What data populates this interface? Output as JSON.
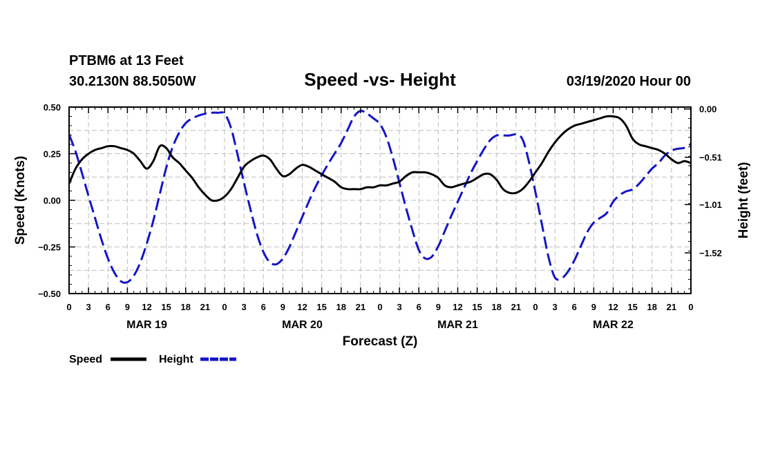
{
  "header": {
    "station": "PTBM6 at 13 Feet",
    "coords": "30.2130N 88.5050W",
    "run": "03/19/2020 Hour 00"
  },
  "legend": {
    "speed_label": "Speed",
    "height_label": "Height"
  },
  "colors": {
    "speed": "#000000",
    "height": "#1414c8",
    "grid": "#bdbdbd"
  },
  "chart_data": {
    "type": "line",
    "title": "Speed -vs- Height",
    "xlabel": "Forecast (Z)",
    "ylabel": "Speed (Knots)",
    "y2label": "Height (feet)",
    "xlim": [
      0,
      96
    ],
    "ylim": [
      -0.5,
      0.5
    ],
    "y2lim": [
      -1.95,
      0.02
    ],
    "x_ticks": [
      0,
      3,
      6,
      9,
      12,
      15,
      18,
      21,
      24,
      27,
      30,
      33,
      36,
      39,
      42,
      45,
      48,
      51,
      54,
      57,
      60,
      63,
      66,
      69,
      72,
      75,
      78,
      81,
      84,
      87,
      90,
      93,
      96
    ],
    "x_tick_labels": [
      "0",
      "3",
      "6",
      "9",
      "12",
      "15",
      "18",
      "21",
      "0",
      "3",
      "6",
      "9",
      "12",
      "15",
      "18",
      "21",
      "0",
      "3",
      "6",
      "9",
      "12",
      "15",
      "18",
      "21",
      "0",
      "3",
      "6",
      "9",
      "12",
      "15",
      "18",
      "21",
      "0"
    ],
    "day_labels": [
      {
        "label": "MAR 19",
        "at": 12
      },
      {
        "label": "MAR 20",
        "at": 36
      },
      {
        "label": "MAR 21",
        "at": 60
      },
      {
        "label": "MAR 22",
        "at": 84
      }
    ],
    "y_ticks": [
      0.5,
      0.25,
      0.0,
      -0.25,
      -0.5
    ],
    "y_tick_labels": [
      "0.50",
      "0.25",
      "0.00",
      "−0.25",
      "−0.50"
    ],
    "y2_ticks": [
      0.0,
      -0.51,
      -1.01,
      -1.52
    ],
    "y2_tick_labels": [
      "0.00",
      "−0.51",
      "−1.01",
      "−1.52"
    ],
    "grid": true,
    "series": [
      {
        "name": "Speed",
        "axis": "left",
        "style": "solid",
        "x": [
          0,
          1,
          2,
          3,
          4,
          5,
          6,
          7,
          8,
          9,
          10,
          11,
          12,
          13,
          14,
          15,
          16,
          17,
          18,
          19,
          20,
          21,
          22,
          23,
          24,
          25,
          26,
          27,
          28,
          29,
          30,
          31,
          32,
          33,
          34,
          35,
          36,
          37,
          38,
          39,
          40,
          41,
          42,
          43,
          44,
          45,
          46,
          47,
          48,
          49,
          50,
          51,
          52,
          53,
          54,
          55,
          56,
          57,
          58,
          59,
          60,
          61,
          62,
          63,
          64,
          65,
          66,
          67,
          68,
          69,
          70,
          71,
          72,
          73,
          74,
          75,
          76,
          77,
          78,
          79,
          80,
          81,
          82,
          83,
          84,
          85,
          86,
          87,
          88,
          89,
          90,
          91,
          92,
          93,
          94,
          95,
          96
        ],
        "values": [
          0.09,
          0.17,
          0.22,
          0.25,
          0.27,
          0.28,
          0.29,
          0.29,
          0.28,
          0.27,
          0.25,
          0.21,
          0.17,
          0.21,
          0.29,
          0.28,
          0.23,
          0.2,
          0.16,
          0.12,
          0.07,
          0.03,
          0.0,
          0.0,
          0.02,
          0.06,
          0.12,
          0.18,
          0.21,
          0.23,
          0.24,
          0.22,
          0.17,
          0.13,
          0.14,
          0.17,
          0.19,
          0.18,
          0.16,
          0.14,
          0.12,
          0.1,
          0.07,
          0.06,
          0.06,
          0.06,
          0.07,
          0.07,
          0.08,
          0.08,
          0.09,
          0.1,
          0.13,
          0.15,
          0.15,
          0.15,
          0.14,
          0.12,
          0.08,
          0.07,
          0.08,
          0.09,
          0.1,
          0.12,
          0.14,
          0.14,
          0.11,
          0.06,
          0.04,
          0.04,
          0.06,
          0.1,
          0.15,
          0.2,
          0.26,
          0.31,
          0.35,
          0.38,
          0.4,
          0.41,
          0.42,
          0.43,
          0.44,
          0.45,
          0.45,
          0.44,
          0.4,
          0.33,
          0.3,
          0.29,
          0.28,
          0.27,
          0.25,
          0.22,
          0.2,
          0.21,
          0.2
        ]
      },
      {
        "name": "Height",
        "axis": "right",
        "style": "dashed",
        "x": [
          0,
          1,
          2,
          3,
          4,
          5,
          6,
          7,
          8,
          9,
          10,
          11,
          12,
          13,
          14,
          15,
          16,
          17,
          18,
          19,
          20,
          21,
          22,
          23,
          24,
          25,
          26,
          27,
          28,
          29,
          30,
          31,
          32,
          33,
          34,
          35,
          36,
          37,
          38,
          39,
          40,
          41,
          42,
          43,
          44,
          45,
          46,
          47,
          48,
          49,
          50,
          51,
          52,
          53,
          54,
          55,
          56,
          57,
          58,
          59,
          60,
          61,
          62,
          63,
          64,
          65,
          66,
          67,
          68,
          69,
          70,
          71,
          72,
          73,
          74,
          75,
          76,
          77,
          78,
          79,
          80,
          81,
          82,
          83,
          84,
          85,
          86,
          87,
          88,
          89,
          90,
          91,
          92,
          93,
          94,
          95,
          96
        ],
        "values": [
          -0.27,
          -0.45,
          -0.68,
          -0.92,
          -1.15,
          -1.38,
          -1.58,
          -1.73,
          -1.82,
          -1.83,
          -1.76,
          -1.62,
          -1.42,
          -1.18,
          -0.9,
          -0.62,
          -0.4,
          -0.25,
          -0.15,
          -0.1,
          -0.07,
          -0.05,
          -0.04,
          -0.04,
          -0.05,
          -0.2,
          -0.48,
          -0.78,
          -1.06,
          -1.32,
          -1.51,
          -1.62,
          -1.64,
          -1.58,
          -1.46,
          -1.3,
          -1.14,
          -0.98,
          -0.83,
          -0.7,
          -0.58,
          -0.47,
          -0.36,
          -0.22,
          -0.08,
          -0.02,
          -0.05,
          -0.1,
          -0.16,
          -0.3,
          -0.52,
          -0.78,
          -1.04,
          -1.28,
          -1.49,
          -1.58,
          -1.56,
          -1.45,
          -1.29,
          -1.13,
          -0.98,
          -0.83,
          -0.68,
          -0.55,
          -0.43,
          -0.33,
          -0.28,
          -0.28,
          -0.28,
          -0.27,
          -0.32,
          -0.56,
          -0.88,
          -1.22,
          -1.56,
          -1.78,
          -1.79,
          -1.72,
          -1.6,
          -1.45,
          -1.3,
          -1.2,
          -1.15,
          -1.1,
          -0.98,
          -0.91,
          -0.87,
          -0.85,
          -0.79,
          -0.71,
          -0.63,
          -0.57,
          -0.49,
          -0.44,
          -0.42,
          -0.41,
          -0.37
        ]
      }
    ]
  }
}
